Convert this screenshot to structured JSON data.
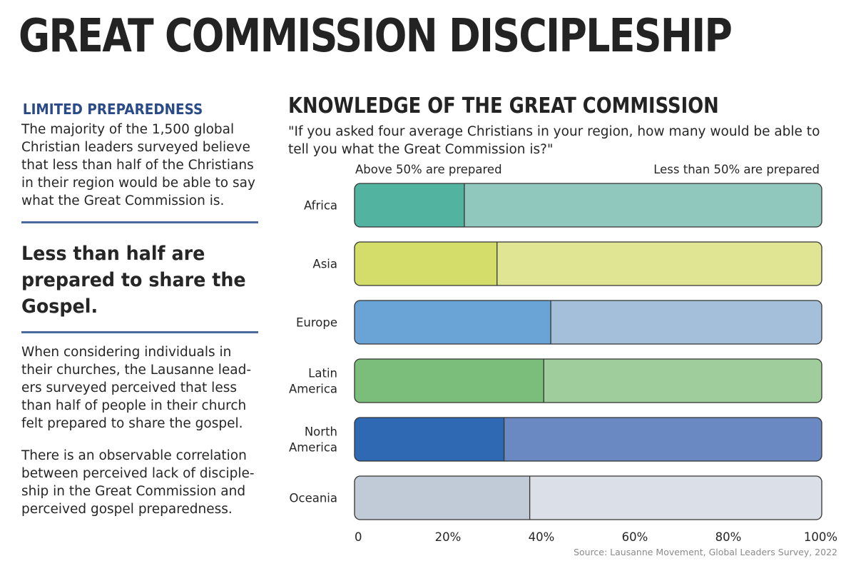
{
  "page": {
    "title": "GREAT COMMISSION DISCIPLESHIP"
  },
  "left": {
    "section_title": "LIMITED PREPAREDNESS",
    "intro_lines": [
      "The majority of the 1,500 global",
      "Christian leaders surveyed believe",
      "that less than half of the Christians",
      "in their region would be able to say",
      "what the Great Commission is."
    ],
    "callout_lines": [
      "Less than half are",
      "prepared to share the",
      "Gospel."
    ],
    "paragraph2_lines": [
      "When considering individuals in",
      "their churches, the Lausanne lead-",
      "ers surveyed perceived that less",
      "than half of people in their church",
      "felt prepared to share the gospel."
    ],
    "paragraph3_lines": [
      "There is an observable correlation",
      "between perceived lack of disciple-",
      "ship in the Great Commission and",
      "perceived gospel preparedness."
    ],
    "rule_color": "#4a6a9c"
  },
  "chart_data": {
    "type": "bar",
    "orientation": "horizontal",
    "stacked": true,
    "title": "KNOWLEDGE OF THE GREAT COMMISSION",
    "subtitle": "\"If you asked four average Christians in your region, how many would be able to tell you what the Great Commission is?\"",
    "categories": [
      "Africa",
      "Asia",
      "Europe",
      "Latin America",
      "North America",
      "Oceania"
    ],
    "category_label_lines": [
      [
        "Africa"
      ],
      [
        "Asia"
      ],
      [
        "Europe"
      ],
      [
        "Latin",
        "America"
      ],
      [
        "North",
        "America"
      ],
      [
        "Oceania"
      ]
    ],
    "series": [
      {
        "name": "Above 50% are prepared",
        "values": [
          23.5,
          30.5,
          42,
          40.5,
          32,
          37.5
        ],
        "colors": [
          "#52b4a0",
          "#d4dd6a",
          "#6aa3d6",
          "#7bbd7b",
          "#2f69b3",
          "#c0cbd7"
        ]
      },
      {
        "name": "Less than 50% are prepared",
        "values": [
          76.5,
          69.5,
          58,
          59.5,
          68,
          62.5
        ],
        "colors": [
          "#90c8bd",
          "#e0e593",
          "#a3bfd9",
          "#9fcd9c",
          "#6a89c2",
          "#dbe0e8"
        ]
      }
    ],
    "xlim": [
      0,
      100
    ],
    "x_ticks": [
      "0",
      "20%",
      "40%",
      "60%",
      "80%",
      "100%"
    ],
    "grid": false,
    "legend_position": "top",
    "source": "Source: Lausanne Movement, Global Leaders Survey, 2022"
  }
}
